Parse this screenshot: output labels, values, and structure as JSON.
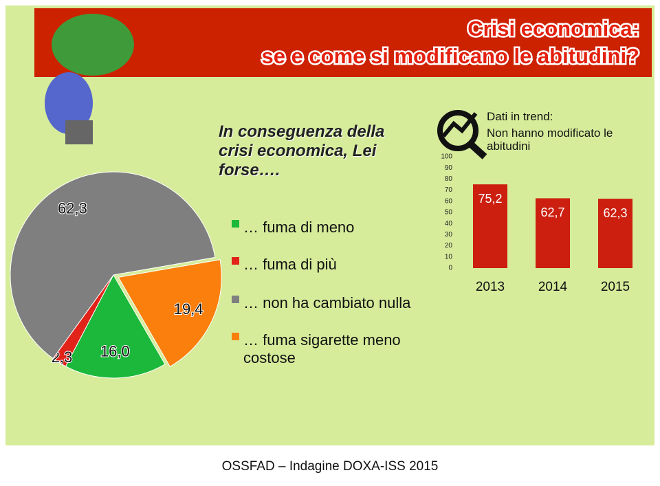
{
  "header": {
    "title": [
      "Crisi economica:",
      "se e come si modificano le abitudini?"
    ]
  },
  "chart_data": [
    {
      "type": "pie",
      "title": "In conseguenza della crisi economica, Lei forse….",
      "categories": [
        "… fuma di meno",
        "… fuma di più",
        "… non ha cambiato nulla",
        "… fuma sigarette meno costose"
      ],
      "values": [
        16.0,
        2.3,
        62.3,
        19.4
      ],
      "value_labels": [
        "16,0",
        "2,3",
        "62,3",
        "19,4"
      ],
      "colors": [
        "#1cb83b",
        "#e2231a",
        "#7f7f7f",
        "#fb7f0c"
      ]
    },
    {
      "type": "bar",
      "title": "Dati in trend:",
      "subtitle": "Non hanno modificato le abitudini",
      "categories": [
        "2013",
        "2014",
        "2015"
      ],
      "values": [
        75.2,
        62.7,
        62.3
      ],
      "value_labels": [
        "75,2",
        "62,7",
        "62,3"
      ],
      "color": "#cc1f0f",
      "ylim": [
        0,
        100
      ],
      "yticks": [
        0,
        10,
        20,
        30,
        40,
        50,
        60,
        70,
        80,
        90,
        100
      ]
    }
  ],
  "footer": {
    "source": "OSSFAD – Indagine DOXA-ISS 2015"
  }
}
